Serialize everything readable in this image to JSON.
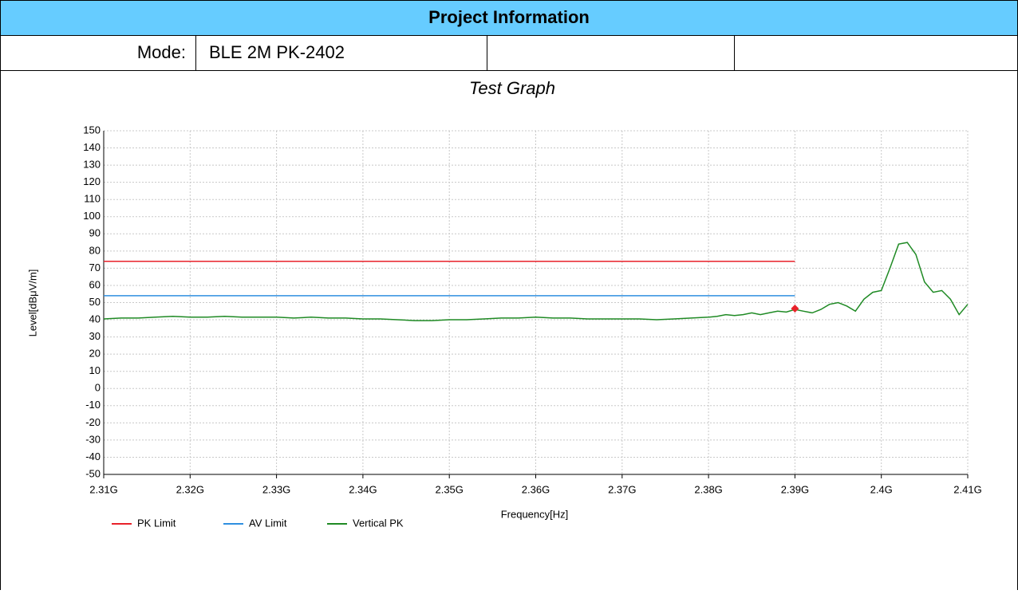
{
  "header": {
    "title": "Project Information",
    "mode_label": "Mode:",
    "mode_value": "BLE 2M PK-2402"
  },
  "chart_data": {
    "type": "line",
    "title": "Test Graph",
    "x_label": "Frequency[Hz]",
    "y_label": "Level[dBμV/m]",
    "xlim": [
      2310000000,
      2410000000
    ],
    "xticks": [
      {
        "value": 2310000000,
        "label": "2.31G"
      },
      {
        "value": 2320000000,
        "label": "2.32G"
      },
      {
        "value": 2330000000,
        "label": "2.33G"
      },
      {
        "value": 2340000000,
        "label": "2.34G"
      },
      {
        "value": 2350000000,
        "label": "2.35G"
      },
      {
        "value": 2360000000,
        "label": "2.36G"
      },
      {
        "value": 2370000000,
        "label": "2.37G"
      },
      {
        "value": 2380000000,
        "label": "2.38G"
      },
      {
        "value": 2390000000,
        "label": "2.39G"
      },
      {
        "value": 2400000000,
        "label": "2.4G"
      },
      {
        "value": 2410000000,
        "label": "2.41G"
      }
    ],
    "ylim": [
      -50,
      150
    ],
    "yticks": [
      -50,
      -40,
      -30,
      -20,
      -10,
      0,
      10,
      20,
      30,
      40,
      50,
      60,
      70,
      80,
      90,
      100,
      110,
      120,
      130,
      140,
      150
    ],
    "grid": true,
    "legend": "bottom-left",
    "series": [
      {
        "name": "PK Limit",
        "color": "#e8212a",
        "x": [
          2310000000,
          2390000000
        ],
        "values": [
          74,
          74
        ]
      },
      {
        "name": "AV Limit",
        "color": "#2f8fe0",
        "x": [
          2310000000,
          2390000000
        ],
        "values": [
          54,
          54
        ]
      },
      {
        "name": "Vertical PK",
        "color": "#1f8a24",
        "x": [
          2310000000,
          2312000000,
          2314000000,
          2316000000,
          2318000000,
          2320000000,
          2322000000,
          2324000000,
          2326000000,
          2328000000,
          2330000000,
          2332000000,
          2334000000,
          2336000000,
          2338000000,
          2340000000,
          2342000000,
          2344000000,
          2346000000,
          2348000000,
          2350000000,
          2352000000,
          2354000000,
          2356000000,
          2358000000,
          2360000000,
          2362000000,
          2364000000,
          2366000000,
          2368000000,
          2370000000,
          2372000000,
          2374000000,
          2376000000,
          2378000000,
          2380000000,
          2381000000,
          2382000000,
          2383000000,
          2384000000,
          2385000000,
          2386000000,
          2387000000,
          2388000000,
          2389000000,
          2390000000,
          2391000000,
          2392000000,
          2393000000,
          2394000000,
          2395000000,
          2396000000,
          2397000000,
          2398000000,
          2399000000,
          2400000000,
          2401000000,
          2402000000,
          2403000000,
          2404000000,
          2405000000,
          2406000000,
          2407000000,
          2408000000,
          2409000000,
          2410000000
        ],
        "values": [
          40.5,
          41,
          41,
          41.5,
          42,
          41.5,
          41.5,
          42,
          41.5,
          41.5,
          41.5,
          41,
          41.5,
          41,
          41,
          40.5,
          40.5,
          40,
          39.5,
          39.5,
          40,
          40,
          40.5,
          41,
          41,
          41.5,
          41,
          41,
          40.5,
          40.5,
          40.5,
          40.5,
          40,
          40.5,
          41,
          41.5,
          42,
          43,
          42.5,
          43,
          44,
          43,
          44,
          45,
          44.5,
          46,
          45,
          44,
          46,
          49,
          50,
          48,
          45,
          52,
          56,
          57,
          70,
          84,
          85,
          78,
          62,
          56,
          57,
          52,
          43,
          49
        ]
      }
    ],
    "markers": [
      {
        "x": 2390000000,
        "y": 46.5,
        "color": "#e8212a"
      }
    ]
  }
}
